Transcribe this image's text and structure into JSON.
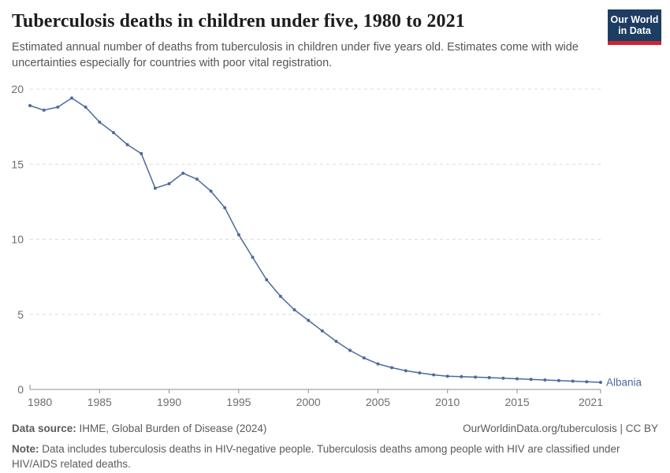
{
  "header": {
    "title": "Tuberculosis deaths in children under five, 1980 to 2021",
    "subtitle": "Estimated annual number of deaths from tuberculosis in children under five years old. Estimates come with wide uncertainties especially for countries with poor vital registration."
  },
  "logo": {
    "line1": "Our World",
    "line2": "in Data",
    "bg_color": "#1d3d63",
    "bar_color": "#cb2431"
  },
  "chart_data": {
    "type": "line",
    "title": "Tuberculosis deaths in children under five, 1980 to 2021",
    "xlabel": "",
    "ylabel": "",
    "x_range": [
      1980,
      2021
    ],
    "ylim": [
      0,
      20
    ],
    "yticks": [
      0,
      5,
      10,
      15,
      20
    ],
    "xticks": [
      1980,
      1985,
      1990,
      1995,
      2000,
      2005,
      2010,
      2015,
      2021
    ],
    "grid": "horizontal dashed",
    "legend_position": "end-of-line label",
    "axis_color": "#8f8f8f",
    "grid_color": "#dcdcdc",
    "tick_label_color": "#6e6e6e",
    "series": [
      {
        "name": "Albania",
        "color": "#4C6A9C",
        "x": [
          1980,
          1981,
          1982,
          1983,
          1984,
          1985,
          1986,
          1987,
          1988,
          1989,
          1990,
          1991,
          1992,
          1993,
          1994,
          1995,
          1996,
          1997,
          1998,
          1999,
          2000,
          2001,
          2002,
          2003,
          2004,
          2005,
          2006,
          2007,
          2008,
          2009,
          2010,
          2011,
          2012,
          2013,
          2014,
          2015,
          2016,
          2017,
          2018,
          2019,
          2020,
          2021
        ],
        "values": [
          18.9,
          18.6,
          18.8,
          19.4,
          18.8,
          17.8,
          17.1,
          16.3,
          15.7,
          13.4,
          13.7,
          14.4,
          14.0,
          13.2,
          12.1,
          10.3,
          8.8,
          7.3,
          6.2,
          5.3,
          4.6,
          3.9,
          3.2,
          2.6,
          2.1,
          1.7,
          1.45,
          1.25,
          1.1,
          0.97,
          0.88,
          0.85,
          0.82,
          0.79,
          0.75,
          0.71,
          0.67,
          0.63,
          0.59,
          0.55,
          0.51,
          0.47
        ]
      }
    ]
  },
  "footer": {
    "source_label": "Data source:",
    "source_value": "IHME, Global Burden of Disease (2024)",
    "link": "OurWorldinData.org/tuberculosis | CC BY",
    "note_label": "Note:",
    "note_value": "Data includes tuberculosis deaths in HIV-negative people. Tuberculosis deaths among people with HIV are classified under HIV/AIDS related deaths."
  }
}
